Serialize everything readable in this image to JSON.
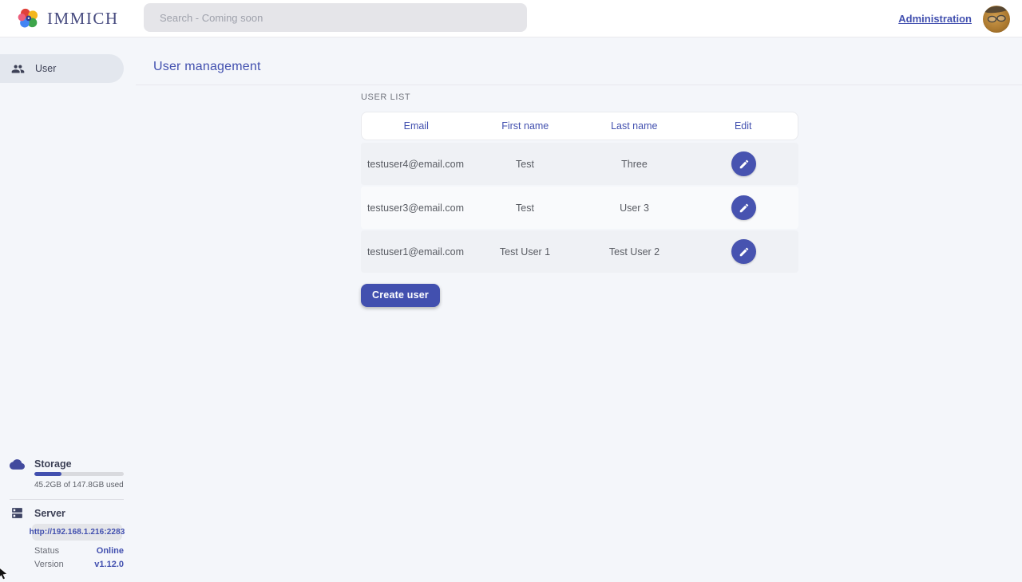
{
  "topbar": {
    "brand": "IMMICH",
    "search_placeholder": "Search - Coming soon",
    "administration_label": "Administration"
  },
  "sidebar": {
    "items": [
      {
        "label": "User",
        "icon": "users-icon",
        "selected": true
      }
    ],
    "storage": {
      "title": "Storage",
      "usage_text": "45.2GB of 147.8GB used",
      "percent_used": 30.6
    },
    "server": {
      "title": "Server",
      "url": "http://192.168.1.216:2283",
      "status_label": "Status",
      "status_value": "Online",
      "version_label": "Version",
      "version_value": "v1.12.0"
    }
  },
  "main": {
    "title": "User management",
    "section_label": "USER LIST",
    "table": {
      "headers": [
        "Email",
        "First name",
        "Last name",
        "Edit"
      ],
      "rows": [
        {
          "email": "testuser4@email.com",
          "first_name": "Test",
          "last_name": "Three"
        },
        {
          "email": "testuser3@email.com",
          "first_name": "Test",
          "last_name": "User 3"
        },
        {
          "email": "testuser1@email.com",
          "first_name": "Test User 1",
          "last_name": "Test User 2"
        }
      ]
    },
    "create_user_label": "Create user"
  },
  "colors": {
    "primary": "#4250af",
    "page_bg": "#f4f6fa",
    "row_odd": "#eff1f5",
    "row_even": "#f9fafc",
    "online": "#4250af"
  },
  "icons": {
    "logo": "immich-flower-logo",
    "sidebar_user": "users-icon",
    "storage": "cloud-icon",
    "server": "server-icon",
    "edit": "pencil-icon"
  }
}
